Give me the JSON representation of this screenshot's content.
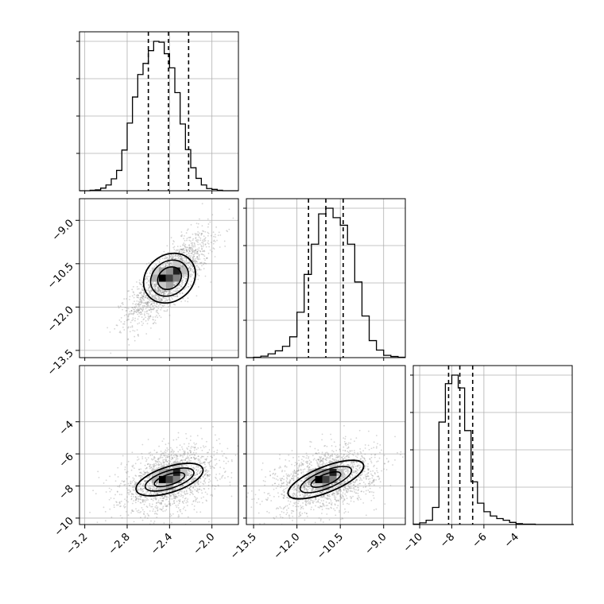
{
  "chart_data": {
    "type": "corner",
    "parameters": [
      {
        "index": 0,
        "range": [
          -3.25,
          -1.75
        ],
        "ticks": [
          -3.2,
          -2.8,
          -2.4,
          -2.0
        ],
        "tick_labels": [
          "−3.2",
          "−2.8",
          "−2.4",
          "−2.0"
        ]
      },
      {
        "index": 1,
        "range": [
          -13.75,
          -8.25
        ],
        "ticks": [
          -13.5,
          -12.0,
          -10.5,
          -9.0
        ],
        "tick_labels": [
          "−13.5",
          "−12.0",
          "−10.5",
          "−9.0"
        ]
      },
      {
        "index": 2,
        "range": [
          -10.4,
          -0.5
        ],
        "ticks": [
          -10,
          -8,
          -6,
          -4
        ],
        "tick_labels": [
          "−10",
          "−8",
          "−6",
          "−4"
        ]
      }
    ],
    "histograms": [
      {
        "param": 0,
        "bin_start": -3.25,
        "bin_width": 0.05,
        "counts": [
          0,
          0,
          1,
          2,
          6,
          13,
          27,
          46,
          92,
          153,
          212,
          263,
          288,
          317,
          338,
          336,
          310,
          278,
          222,
          151,
          93,
          52,
          28,
          13,
          5,
          3,
          1,
          0,
          0,
          0
        ],
        "quantiles": [
          -2.6,
          -2.41,
          -2.22
        ]
      },
      {
        "param": 1,
        "bin_start": -13.75,
        "bin_width": 0.25,
        "counts": [
          0,
          1,
          4,
          10,
          18,
          30,
          55,
          120,
          220,
          300,
          380,
          395,
          370,
          350,
          300,
          200,
          110,
          45,
          20,
          6,
          3,
          1
        ],
        "quantiles": [
          -11.6,
          -11.0,
          -10.4
        ]
      },
      {
        "param": 2,
        "bin_start": -10.4,
        "bin_width": 0.4,
        "counts": [
          1,
          4,
          10,
          40,
          240,
          330,
          350,
          320,
          220,
          100,
          50,
          30,
          20,
          14,
          10,
          5,
          2,
          1,
          1,
          0,
          0,
          0,
          0,
          0,
          0
        ],
        "quantiles": [
          -8.2,
          -7.5,
          -6.7
        ]
      }
    ],
    "pairs": [
      {
        "x": 0,
        "y": 1,
        "mean": [
          -2.4,
          -11.0
        ],
        "sd": [
          0.15,
          0.6
        ],
        "rho": 0.78,
        "contours": [
          {
            "rx": 0.26,
            "ry": 1.45,
            "angle_deg": 38
          },
          {
            "rx": 0.19,
            "ry": 1.05,
            "angle_deg": 38
          },
          {
            "rx": 0.12,
            "ry": 0.65,
            "angle_deg": 38
          }
        ]
      },
      {
        "x": 0,
        "y": 2,
        "mean": [
          -2.4,
          -7.6
        ],
        "sd": [
          0.18,
          0.8
        ],
        "rho": 0.35,
        "contours": [
          {
            "rx": 0.33,
            "ry": 1.45,
            "angle_deg": 18
          },
          {
            "rx": 0.24,
            "ry": 1.0,
            "angle_deg": 18
          },
          {
            "rx": 0.15,
            "ry": 0.6,
            "angle_deg": 18
          }
        ]
      },
      {
        "x": 1,
        "y": 2,
        "mean": [
          -11.0,
          -7.6
        ],
        "sd": [
          0.7,
          0.8
        ],
        "rho": 0.35,
        "contours": [
          {
            "rx": 1.4,
            "ry": 1.45,
            "angle_deg": 22
          },
          {
            "rx": 0.95,
            "ry": 1.0,
            "angle_deg": 22
          },
          {
            "rx": 0.55,
            "ry": 0.6,
            "angle_deg": 22
          }
        ]
      }
    ],
    "grid": true,
    "colors": {
      "line": "#000000",
      "scatter": "#888888",
      "grid": "#b0b0b0"
    }
  }
}
